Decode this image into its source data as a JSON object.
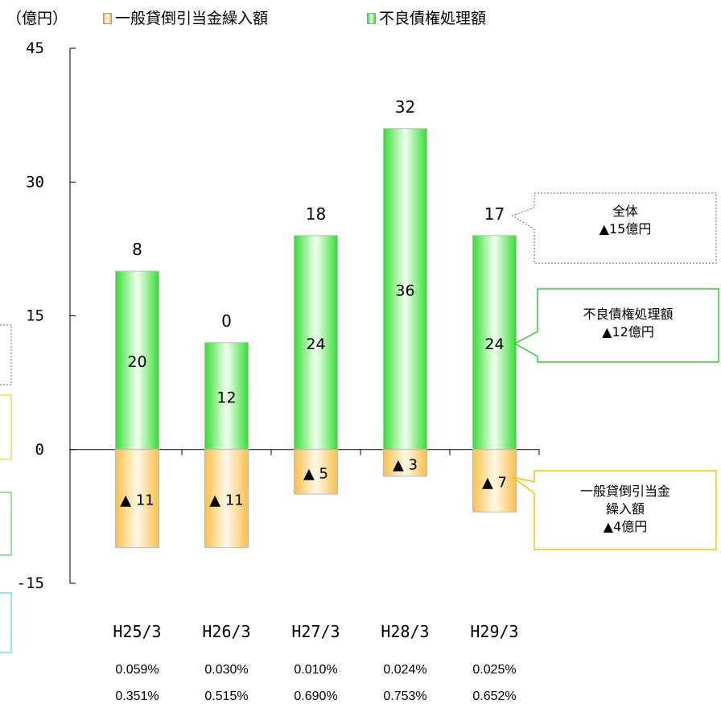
{
  "header": {
    "unit": "（億円）",
    "legend": [
      {
        "label": "一般貸倒引当金繰入額",
        "color": "#f7c04a"
      },
      {
        "label": "不良債権処理額",
        "color": "#33dd33"
      }
    ]
  },
  "chart_data": {
    "type": "bar",
    "stacked": true,
    "categories": [
      "H25/3",
      "H26/3",
      "H27/3",
      "H28/3",
      "H29/3"
    ],
    "series": [
      {
        "name": "不良債権処理額",
        "values": [
          20,
          12,
          24,
          36,
          24
        ],
        "labels": [
          "20",
          "12",
          "24",
          "36",
          "24"
        ],
        "color": "#33dd33"
      },
      {
        "name": "一般貸倒引当金繰入額",
        "values": [
          -11,
          -11,
          -5,
          -3,
          -7
        ],
        "labels": [
          "▲ 11",
          "▲ 11",
          "▲ 5",
          "▲ 3",
          "▲ 7"
        ],
        "color": "#f7c04a"
      }
    ],
    "totals": [
      "8",
      "0",
      "18",
      "32",
      "17"
    ],
    "ylim": [
      -15,
      45
    ],
    "yticks": [
      "-15",
      "0",
      "15",
      "30",
      "45"
    ],
    "ytick_values": [
      -15,
      0,
      15,
      30,
      45
    ],
    "grid": false,
    "rows": [
      [
        "0.059%",
        "0.030%",
        "0.010%",
        "0.024%",
        "0.025%"
      ],
      [
        "0.351%",
        "0.515%",
        "0.690%",
        "0.753%",
        "0.652%"
      ]
    ]
  },
  "callouts": {
    "total": [
      "全体",
      "▲15億円"
    ],
    "bad_debt": [
      "不良債権処理額",
      "▲12億円"
    ],
    "provision": [
      "一般貸倒引当金",
      "繰入額",
      "▲4億円"
    ]
  },
  "colors": {
    "green_light": "#f4fff0",
    "green_dark": "#33dd33",
    "orange_light": "#fff8e8",
    "orange_dark": "#f7c04a",
    "callout_green_border": "#33cc33",
    "callout_orange_border": "#f5c400",
    "callout_cyan_border": "#33cccc"
  }
}
